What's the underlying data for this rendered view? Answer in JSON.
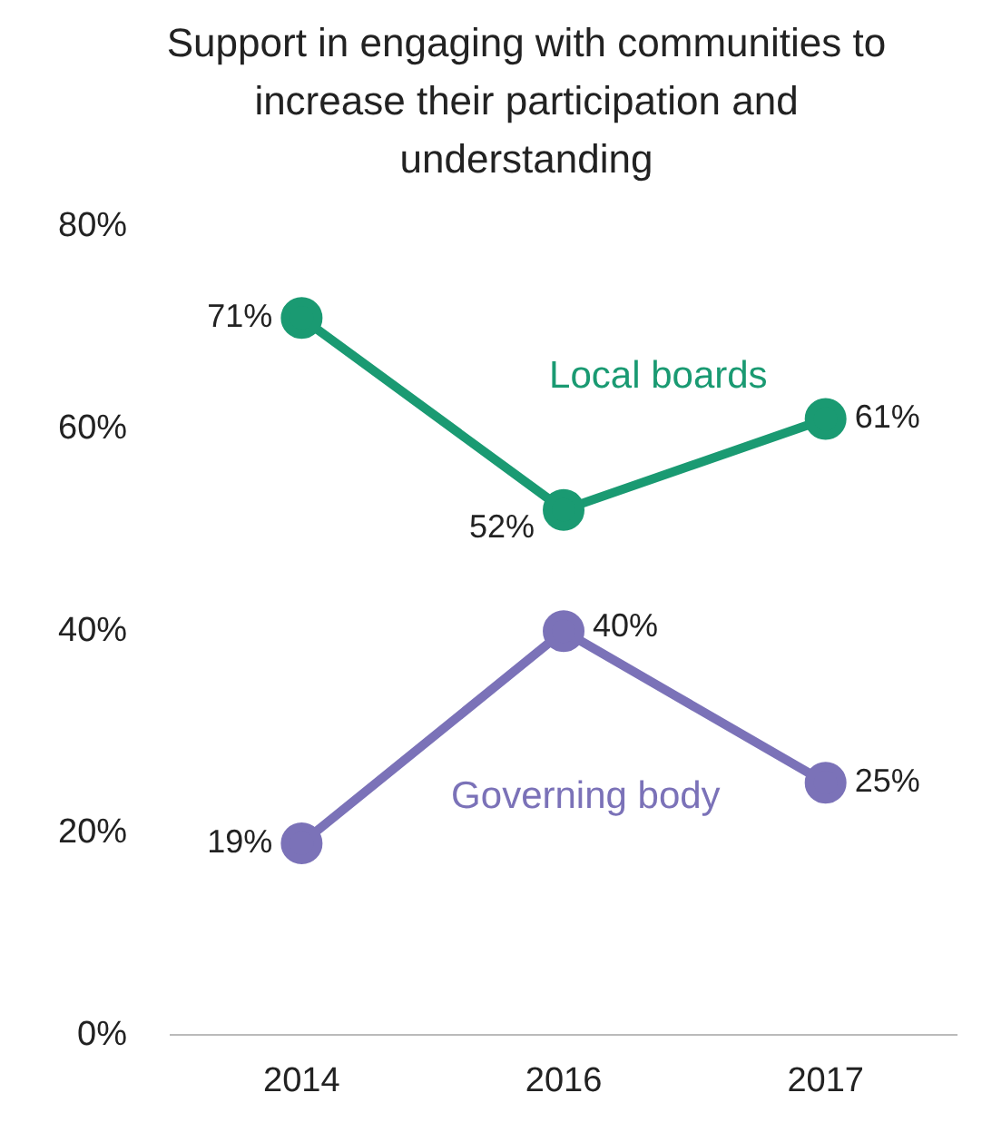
{
  "chart_data": {
    "type": "line",
    "title": "Support in engaging with communities to increase their participation and understanding",
    "categories": [
      "2014",
      "2016",
      "2017"
    ],
    "series": [
      {
        "name": "Local boards",
        "color": "#1a9a72",
        "values": [
          71,
          52,
          61
        ],
        "value_labels": [
          "71%",
          "52%",
          "61%"
        ]
      },
      {
        "name": "Governing body",
        "color": "#7b72b8",
        "values": [
          19,
          40,
          25
        ],
        "value_labels": [
          "19%",
          "40%",
          "25%"
        ]
      }
    ],
    "ylim": [
      0,
      80
    ],
    "yticks": [
      {
        "value": 0,
        "label": "0%"
      },
      {
        "value": 20,
        "label": "20%"
      },
      {
        "value": 40,
        "label": "40%"
      },
      {
        "value": 60,
        "label": "60%"
      },
      {
        "value": 80,
        "label": "80%"
      }
    ],
    "grid": false,
    "legend": false,
    "marker": "circle",
    "line_style": "solid"
  }
}
